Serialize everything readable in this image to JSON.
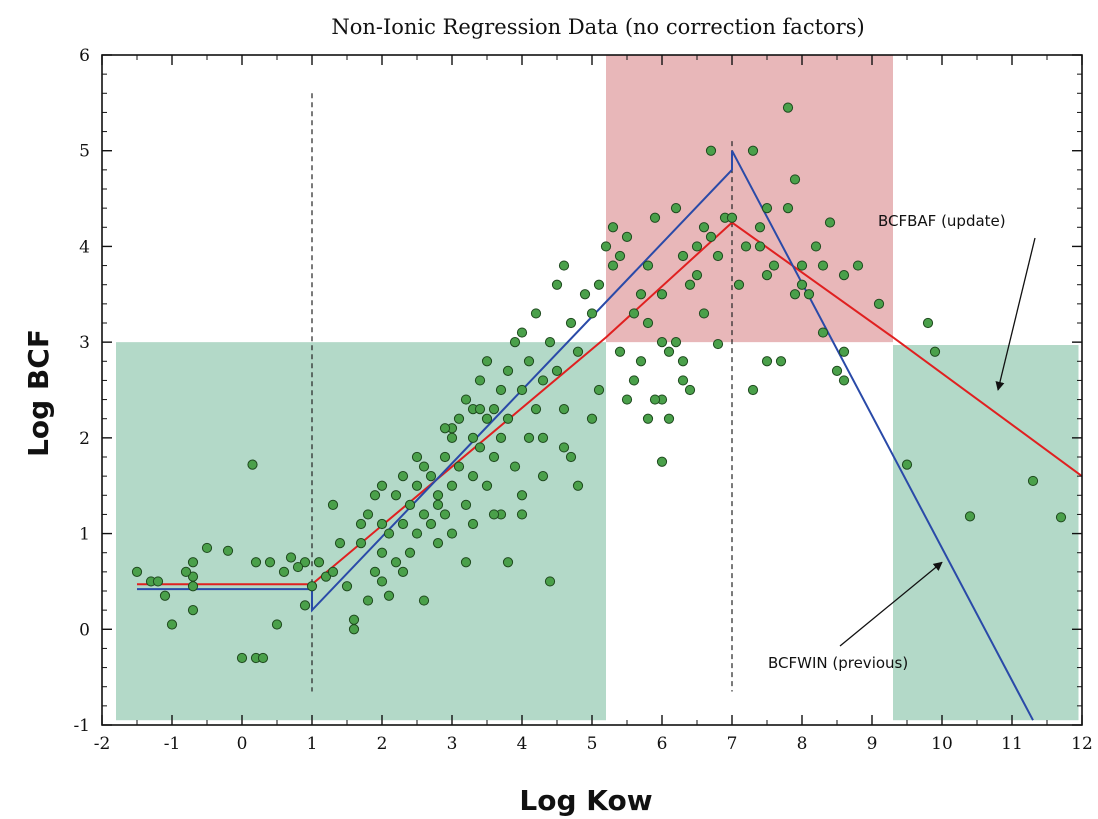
{
  "chart_data": {
    "type": "scatter",
    "title": "Non-Ionic Regression Data (no correction factors)",
    "xlabel": "Log Kow",
    "ylabel": "Log BCF",
    "xlim": [
      -2,
      12
    ],
    "ylim": [
      -1,
      6
    ],
    "x_ticks": [
      "-2",
      "-1",
      "0",
      "1",
      "2",
      "3",
      "4",
      "5",
      "6",
      "7",
      "8",
      "9",
      "10",
      "11",
      "12"
    ],
    "y_ticks": [
      "-1",
      "0",
      "1",
      "2",
      "3",
      "4",
      "5",
      "6"
    ],
    "grid": false,
    "regions": [
      {
        "x": [
          -1.8,
          5.2
        ],
        "y": [
          -0.95,
          3.0
        ],
        "color": "#b3d9c8"
      },
      {
        "x": [
          5.2,
          9.3
        ],
        "y": [
          3.0,
          6.0
        ],
        "color": "#e8b7b9"
      },
      {
        "x": [
          9.3,
          11.95
        ],
        "y": [
          -0.95,
          2.97
        ],
        "color": "#b3d9c8"
      }
    ],
    "reference_lines": [
      {
        "x": 1.0,
        "y": [
          -0.65,
          5.6
        ]
      },
      {
        "x": 7.0,
        "y": [
          -0.65,
          5.1
        ]
      }
    ],
    "series": [
      {
        "name": "BCFBAF (update)",
        "color": "#e02020",
        "x": [
          -1.5,
          1.0,
          1.0,
          5.2,
          7.0,
          9.3,
          12.0
        ],
        "y": [
          0.47,
          0.47,
          0.47,
          3.05,
          4.25,
          3.05,
          1.6
        ]
      },
      {
        "name": "BCFWIN (previous)",
        "color": "#2a4aa8",
        "x": [
          -1.5,
          1.0,
          1.0,
          7.0,
          7.0,
          11.3
        ],
        "y": [
          0.42,
          0.42,
          0.2,
          4.8,
          5.0,
          -0.95
        ]
      },
      {
        "name": "",
        "color": "#4aa04a",
        "points": [
          [
            -1.5,
            0.6
          ],
          [
            -1.3,
            0.5
          ],
          [
            -1.1,
            0.35
          ],
          [
            -1.0,
            0.05
          ],
          [
            -0.7,
            0.55
          ],
          [
            -0.5,
            0.85
          ],
          [
            -0.2,
            0.82
          ],
          [
            0.0,
            -0.3
          ],
          [
            0.2,
            -0.3
          ],
          [
            0.15,
            1.72
          ],
          [
            0.2,
            0.7
          ],
          [
            -0.7,
            0.2
          ],
          [
            -0.7,
            0.7
          ],
          [
            -0.7,
            0.45
          ],
          [
            -1.2,
            0.5
          ],
          [
            0.4,
            0.7
          ],
          [
            0.6,
            0.6
          ],
          [
            0.7,
            0.75
          ],
          [
            0.9,
            0.7
          ],
          [
            -0.8,
            0.6
          ],
          [
            0.3,
            -0.3
          ],
          [
            0.5,
            0.05
          ],
          [
            0.8,
            0.65
          ],
          [
            0.9,
            0.25
          ],
          [
            1.0,
            0.45
          ],
          [
            1.1,
            0.7
          ],
          [
            1.2,
            0.55
          ],
          [
            1.3,
            1.3
          ],
          [
            1.3,
            0.6
          ],
          [
            1.5,
            0.45
          ],
          [
            1.6,
            0.0
          ],
          [
            1.7,
            0.9
          ],
          [
            1.8,
            1.2
          ],
          [
            1.8,
            0.3
          ],
          [
            1.9,
            0.6
          ],
          [
            2.0,
            0.8
          ],
          [
            2.0,
            1.5
          ],
          [
            2.1,
            0.35
          ],
          [
            2.1,
            1.0
          ],
          [
            2.2,
            0.7
          ],
          [
            2.2,
            1.4
          ],
          [
            2.3,
            1.1
          ],
          [
            2.3,
            0.6
          ],
          [
            2.4,
            1.3
          ],
          [
            2.4,
            0.8
          ],
          [
            2.5,
            1.5
          ],
          [
            2.5,
            1.0
          ],
          [
            2.6,
            1.2
          ],
          [
            2.6,
            0.3
          ],
          [
            2.7,
            1.6
          ],
          [
            2.7,
            1.1
          ],
          [
            2.8,
            1.4
          ],
          [
            2.8,
            0.9
          ],
          [
            2.9,
            1.8
          ],
          [
            2.9,
            1.2
          ],
          [
            3.0,
            2.0
          ],
          [
            3.0,
            1.5
          ],
          [
            3.0,
            1.0
          ],
          [
            3.1,
            2.2
          ],
          [
            3.1,
            1.7
          ],
          [
            3.2,
            2.4
          ],
          [
            3.2,
            1.3
          ],
          [
            3.3,
            2.0
          ],
          [
            3.3,
            1.6
          ],
          [
            3.3,
            2.3
          ],
          [
            3.4,
            2.6
          ],
          [
            3.4,
            1.9
          ],
          [
            3.5,
            2.2
          ],
          [
            3.5,
            1.5
          ],
          [
            3.5,
            2.8
          ],
          [
            3.6,
            2.3
          ],
          [
            3.6,
            1.8
          ],
          [
            3.7,
            2.5
          ],
          [
            3.7,
            2.0
          ],
          [
            3.7,
            1.2
          ],
          [
            3.8,
            2.7
          ],
          [
            3.8,
            2.2
          ],
          [
            3.9,
            3.0
          ],
          [
            3.9,
            1.7
          ],
          [
            4.0,
            2.5
          ],
          [
            4.0,
            3.1
          ],
          [
            4.0,
            1.4
          ],
          [
            4.1,
            2.8
          ],
          [
            4.1,
            2.0
          ],
          [
            4.2,
            3.3
          ],
          [
            4.2,
            2.3
          ],
          [
            4.3,
            2.6
          ],
          [
            4.3,
            1.6
          ],
          [
            4.4,
            3.0
          ],
          [
            4.4,
            0.5
          ],
          [
            4.5,
            2.7
          ],
          [
            4.5,
            3.6
          ],
          [
            4.6,
            2.3
          ],
          [
            4.6,
            3.8
          ],
          [
            4.7,
            1.8
          ],
          [
            4.7,
            3.2
          ],
          [
            4.8,
            1.5
          ],
          [
            4.8,
            2.9
          ],
          [
            4.9,
            3.5
          ],
          [
            5.0,
            2.2
          ],
          [
            4.0,
            1.2
          ],
          [
            3.8,
            0.7
          ],
          [
            4.3,
            2.0
          ],
          [
            4.6,
            1.9
          ],
          [
            2.0,
            0.5
          ],
          [
            1.6,
            0.1
          ],
          [
            2.5,
            1.8
          ],
          [
            3.2,
            0.7
          ],
          [
            2.8,
            1.3
          ],
          [
            3.6,
            1.2
          ],
          [
            3.4,
            2.3
          ],
          [
            3.0,
            2.1
          ],
          [
            2.6,
            1.7
          ],
          [
            2.0,
            1.1
          ],
          [
            1.4,
            0.9
          ],
          [
            1.7,
            1.1
          ],
          [
            1.9,
            1.4
          ],
          [
            2.3,
            1.6
          ],
          [
            2.9,
            2.1
          ],
          [
            3.3,
            1.1
          ],
          [
            5.0,
            3.3
          ],
          [
            5.1,
            3.6
          ],
          [
            5.1,
            2.5
          ],
          [
            5.2,
            4.0
          ],
          [
            5.3,
            3.8
          ],
          [
            5.4,
            2.9
          ],
          [
            5.5,
            4.1
          ],
          [
            5.6,
            3.3
          ],
          [
            5.7,
            2.8
          ],
          [
            5.8,
            3.8
          ],
          [
            5.9,
            4.3
          ],
          [
            6.0,
            2.4
          ],
          [
            6.0,
            3.5
          ],
          [
            6.1,
            2.2
          ],
          [
            6.2,
            4.4
          ],
          [
            6.2,
            3.0
          ],
          [
            6.3,
            2.6
          ],
          [
            6.3,
            3.9
          ],
          [
            6.4,
            3.6
          ],
          [
            6.5,
            4.0
          ],
          [
            5.5,
            2.4
          ],
          [
            5.8,
            2.2
          ],
          [
            6.0,
            3.0
          ],
          [
            6.0,
            1.75
          ],
          [
            6.4,
            2.5
          ],
          [
            6.6,
            3.3
          ],
          [
            6.8,
            3.9
          ],
          [
            6.8,
            2.98
          ],
          [
            6.9,
            4.3
          ],
          [
            6.6,
            4.2
          ],
          [
            5.7,
            3.5
          ],
          [
            5.4,
            3.9
          ],
          [
            5.6,
            2.6
          ],
          [
            6.1,
            2.9
          ],
          [
            5.9,
            2.4
          ],
          [
            5.3,
            4.2
          ],
          [
            5.8,
            3.2
          ],
          [
            6.5,
            3.7
          ],
          [
            6.3,
            2.8
          ],
          [
            6.7,
            4.1
          ],
          [
            6.7,
            5.0
          ],
          [
            7.0,
            4.3
          ],
          [
            7.2,
            4.0
          ],
          [
            7.3,
            5.0
          ],
          [
            7.4,
            4.2
          ],
          [
            7.5,
            3.7
          ],
          [
            7.5,
            4.4
          ],
          [
            7.6,
            3.8
          ],
          [
            7.8,
            5.45
          ],
          [
            7.8,
            4.4
          ],
          [
            7.9,
            4.7
          ],
          [
            8.0,
            3.6
          ],
          [
            8.0,
            3.8
          ],
          [
            8.2,
            4.0
          ],
          [
            8.3,
            3.1
          ],
          [
            8.3,
            3.8
          ],
          [
            8.4,
            4.25
          ],
          [
            8.6,
            2.9
          ],
          [
            8.5,
            2.7
          ],
          [
            8.6,
            3.7
          ],
          [
            8.8,
            3.8
          ],
          [
            9.1,
            3.4
          ],
          [
            7.7,
            2.8
          ],
          [
            7.3,
            2.5
          ],
          [
            7.5,
            2.8
          ],
          [
            7.1,
            3.6
          ],
          [
            7.4,
            4.0
          ],
          [
            8.1,
            3.5
          ],
          [
            8.6,
            2.6
          ],
          [
            7.9,
            3.5
          ],
          [
            9.5,
            1.72
          ],
          [
            9.8,
            3.2
          ],
          [
            9.9,
            2.9
          ],
          [
            10.4,
            1.18
          ],
          [
            11.3,
            1.55
          ],
          [
            11.7,
            1.17
          ]
        ]
      }
    ],
    "annotations": [
      {
        "text": "BCFBAF (update)",
        "arrow_to": [
          10.8,
          2.5
        ]
      },
      {
        "text": "BCFWIN (previous)",
        "arrow_to": [
          10.0,
          0.7
        ]
      }
    ]
  }
}
